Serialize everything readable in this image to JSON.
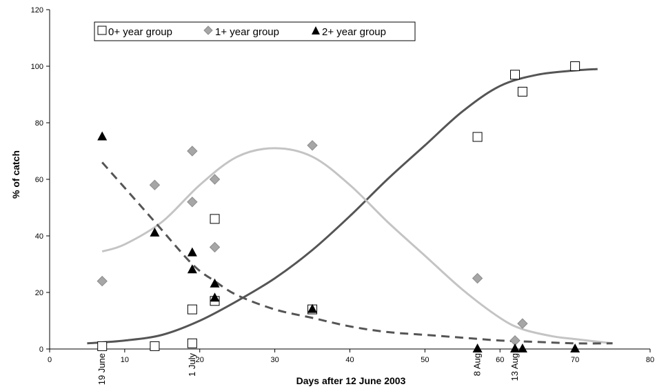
{
  "chart_data": {
    "type": "scatter",
    "title": "",
    "xlabel": "Days after 12 June 2003",
    "ylabel": "% of catch",
    "xlim": [
      0,
      80
    ],
    "ylim": [
      0,
      120
    ],
    "x_ticks": [
      0,
      10,
      20,
      30,
      40,
      50,
      60,
      70,
      80
    ],
    "y_ticks": [
      0,
      20,
      40,
      60,
      80,
      100,
      120
    ],
    "grid": false,
    "legend_position": "top-left",
    "date_labels": [
      {
        "x": 7,
        "text": "19 June"
      },
      {
        "x": 19,
        "text": "1 July"
      },
      {
        "x": 57,
        "text": "8 Aug"
      },
      {
        "x": 62,
        "text": "13 Aug"
      }
    ],
    "series": [
      {
        "name": "0+ year group",
        "marker": "open-square",
        "color": "#000000",
        "points": [
          [
            7,
            1
          ],
          [
            14,
            1
          ],
          [
            19,
            14
          ],
          [
            19,
            2
          ],
          [
            22,
            46
          ],
          [
            22,
            17
          ],
          [
            35,
            14
          ],
          [
            57,
            75
          ],
          [
            62,
            97
          ],
          [
            63,
            91
          ],
          [
            70,
            100
          ]
        ]
      },
      {
        "name": "1+ year group",
        "marker": "diamond",
        "color": "#a6a6a6",
        "points": [
          [
            7,
            24
          ],
          [
            14,
            58
          ],
          [
            19,
            70
          ],
          [
            19,
            52
          ],
          [
            22,
            60
          ],
          [
            22,
            36
          ],
          [
            35,
            72
          ],
          [
            57,
            25
          ],
          [
            62,
            3
          ],
          [
            63,
            9
          ]
        ]
      },
      {
        "name": "2+ year group",
        "marker": "filled-triangle",
        "color": "#000000",
        "points": [
          [
            7,
            75
          ],
          [
            14,
            41
          ],
          [
            19,
            34
          ],
          [
            19,
            28
          ],
          [
            22,
            23
          ],
          [
            22,
            18
          ],
          [
            35,
            14
          ],
          [
            57,
            0
          ],
          [
            62,
            0
          ],
          [
            63,
            0
          ],
          [
            70,
            0
          ]
        ]
      }
    ],
    "trend_lines": [
      {
        "series": "0+ year group",
        "style": "solid",
        "color": "#555555",
        "points": [
          [
            5,
            2
          ],
          [
            10,
            3
          ],
          [
            15,
            5
          ],
          [
            20,
            10
          ],
          [
            25,
            17
          ],
          [
            30,
            25
          ],
          [
            35,
            35
          ],
          [
            40,
            47
          ],
          [
            45,
            60
          ],
          [
            50,
            72
          ],
          [
            55,
            84
          ],
          [
            60,
            93
          ],
          [
            65,
            97
          ],
          [
            70,
            98.5
          ],
          [
            73,
            99
          ]
        ]
      },
      {
        "series": "1+ year group",
        "style": "solid",
        "color": "#c4c4c4",
        "points": [
          [
            7,
            34.5
          ],
          [
            10,
            37
          ],
          [
            15,
            45
          ],
          [
            20,
            58
          ],
          [
            25,
            68
          ],
          [
            30,
            71
          ],
          [
            35,
            68
          ],
          [
            40,
            58
          ],
          [
            45,
            45
          ],
          [
            50,
            33
          ],
          [
            55,
            21
          ],
          [
            60,
            11
          ],
          [
            63,
            7
          ],
          [
            67,
            4.5
          ],
          [
            70,
            3.5
          ],
          [
            75,
            2
          ]
        ]
      },
      {
        "series": "2+ year group",
        "style": "dashed",
        "color": "#555555",
        "points": [
          [
            7,
            66
          ],
          [
            10,
            57
          ],
          [
            14,
            45
          ],
          [
            19,
            30
          ],
          [
            22,
            24
          ],
          [
            25,
            19
          ],
          [
            30,
            14
          ],
          [
            35,
            11
          ],
          [
            40,
            8
          ],
          [
            45,
            6
          ],
          [
            50,
            5
          ],
          [
            55,
            4
          ],
          [
            60,
            3
          ],
          [
            65,
            2.5
          ],
          [
            70,
            2
          ],
          [
            75,
            2
          ]
        ]
      }
    ]
  }
}
